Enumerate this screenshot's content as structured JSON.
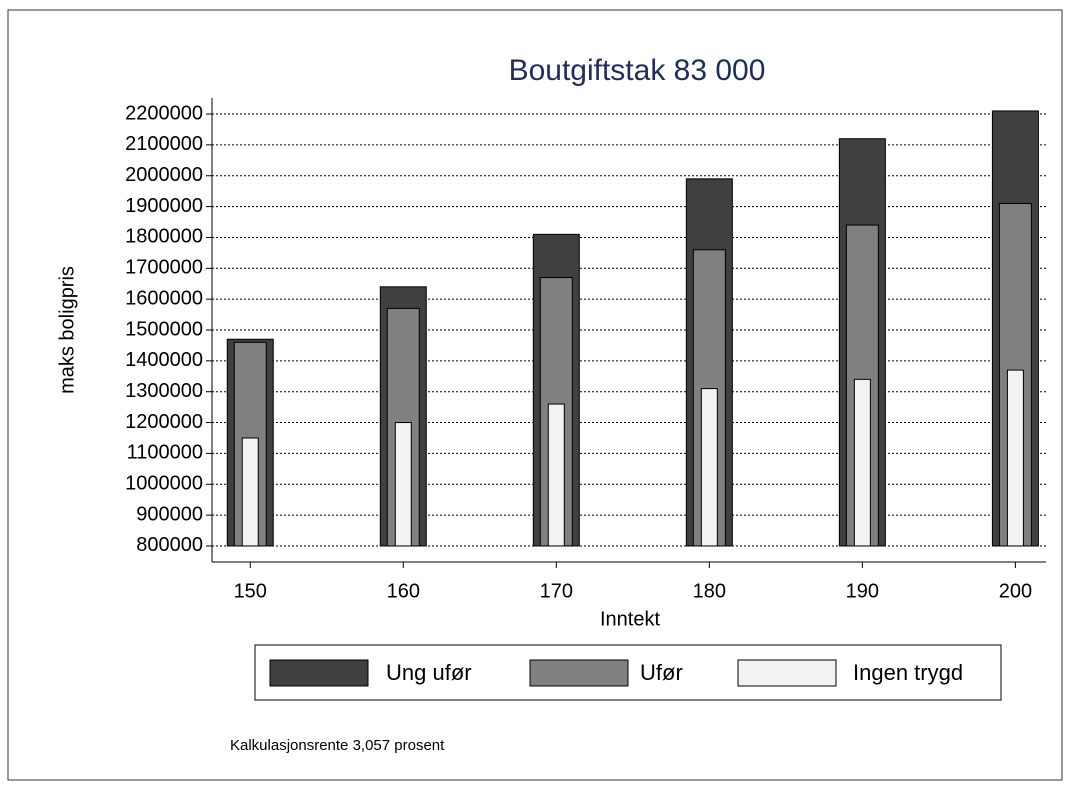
{
  "chart_data": {
    "type": "bar",
    "title": "Boutgiftstak 83 000",
    "x_label": "Inntekt",
    "y_label": "maks boligpris",
    "note": "Kalkulasjonsrente 3,057 prosent",
    "x": [
      150,
      160,
      170,
      180,
      190,
      200
    ],
    "series": [
      {
        "name": "Ung ufør",
        "color": "#404040",
        "values": [
          1470000,
          1640000,
          1810000,
          1990000,
          2120000,
          2210000
        ]
      },
      {
        "name": "Ufør",
        "color": "#808080",
        "values": [
          1460000,
          1570000,
          1670000,
          1760000,
          1840000,
          1910000
        ]
      },
      {
        "name": "Ingen trygd",
        "color": "#f2f2f2",
        "values": [
          1150000,
          1200000,
          1260000,
          1310000,
          1340000,
          1370000
        ]
      }
    ],
    "xlim": [
      147.5,
      202
    ],
    "xticks": [
      150,
      160,
      170,
      180,
      190,
      200
    ],
    "ylim": [
      748000,
      2252000
    ],
    "yticks": [
      800000,
      900000,
      1000000,
      1100000,
      1200000,
      1300000,
      1400000,
      1500000,
      1600000,
      1700000,
      1800000,
      1900000,
      2000000,
      2100000,
      2200000
    ],
    "grid": true,
    "legend": "bottom"
  }
}
